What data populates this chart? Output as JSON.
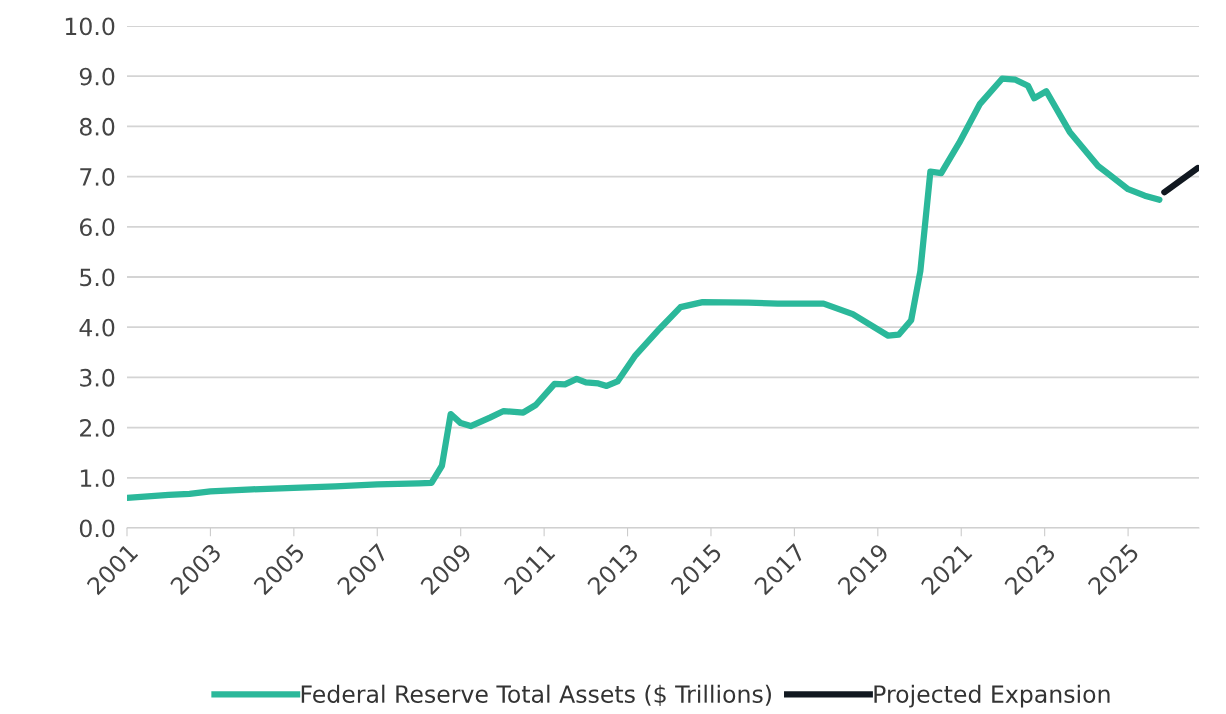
{
  "chart_data": {
    "type": "line",
    "xlim": [
      2001,
      2026.7
    ],
    "xticks": [
      2001,
      2003,
      2005,
      2007,
      2009,
      2011,
      2013,
      2015,
      2017,
      2019,
      2021,
      2023,
      2025
    ],
    "ylim": [
      0,
      10
    ],
    "yticks": [
      {
        "value": 0,
        "label": "0.0"
      },
      {
        "value": 1,
        "label": "1.0"
      },
      {
        "value": 2,
        "label": "2.0"
      },
      {
        "value": 3,
        "label": "3.0"
      },
      {
        "value": 4,
        "label": "4.0"
      },
      {
        "value": 5,
        "label": "5.0"
      },
      {
        "value": 6,
        "label": "6.0"
      },
      {
        "value": 7,
        "label": "7.0"
      },
      {
        "value": 8,
        "label": "8.0"
      },
      {
        "value": 9,
        "label": "9.0"
      },
      {
        "value": 10,
        "label": "10.0"
      }
    ],
    "grid": "y",
    "legend": "bottom",
    "marker": "none",
    "line_style": "solid",
    "series": [
      {
        "name": "Federal Reserve Total Assets ($ Trillions)",
        "color": "#2bb89a",
        "x": [
          2001.0,
          2002.0,
          2002.5,
          2003.0,
          2004.0,
          2005.0,
          2006.0,
          2007.0,
          2008.0,
          2008.3,
          2008.55,
          2008.76,
          2009.0,
          2009.24,
          2009.7,
          2010.03,
          2010.5,
          2010.8,
          2011.25,
          2011.5,
          2011.78,
          2012.0,
          2012.3,
          2012.5,
          2012.76,
          2013.19,
          2013.77,
          2014.27,
          2014.8,
          2015.9,
          2016.6,
          2017.7,
          2018.4,
          2019.25,
          2019.5,
          2019.8,
          2020.02,
          2020.26,
          2020.52,
          2020.95,
          2021.45,
          2021.98,
          2022.3,
          2022.6,
          2022.75,
          2023.04,
          2023.6,
          2024.28,
          2024.5,
          2025.0,
          2025.4,
          2025.75
        ],
        "values": [
          0.6,
          0.66,
          0.68,
          0.73,
          0.77,
          0.8,
          0.83,
          0.87,
          0.89,
          0.9,
          1.24,
          2.27,
          2.09,
          2.03,
          2.2,
          2.33,
          2.3,
          2.45,
          2.87,
          2.86,
          2.97,
          2.9,
          2.88,
          2.83,
          2.92,
          3.44,
          3.97,
          4.4,
          4.5,
          4.49,
          4.47,
          4.47,
          4.26,
          3.83,
          3.85,
          4.14,
          5.12,
          7.1,
          7.07,
          7.67,
          8.45,
          8.95,
          8.93,
          8.81,
          8.56,
          8.7,
          7.89,
          7.21,
          7.07,
          6.75,
          6.62,
          6.54
        ]
      },
      {
        "name": "Projected Expansion",
        "color": "#111820",
        "x": [
          2025.87,
          2026.67
        ],
        "values": [
          6.69,
          7.17
        ]
      }
    ]
  }
}
